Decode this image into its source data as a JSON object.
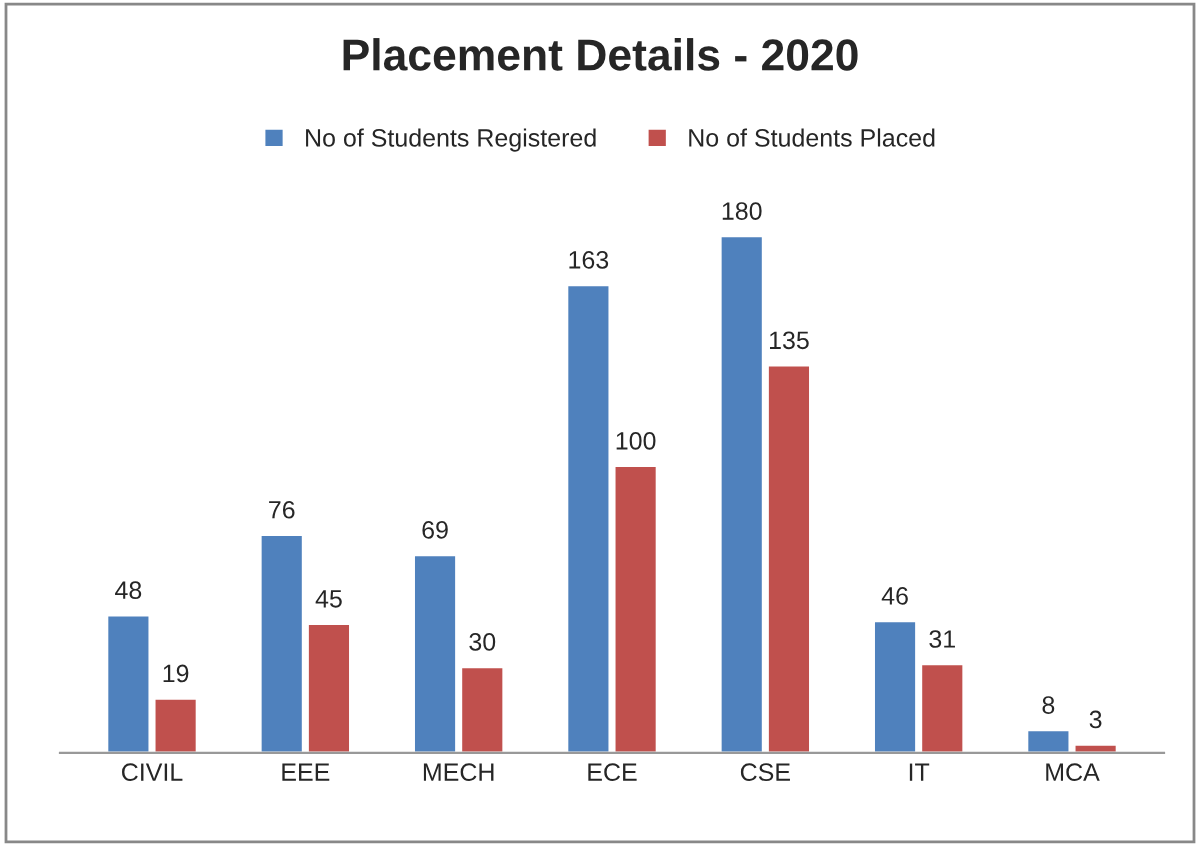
{
  "chart_data": {
    "type": "bar",
    "title": "Placement Details - 2020",
    "categories": [
      "CIVIL",
      "EEE",
      "MECH",
      "ECE",
      "CSE",
      "IT",
      "MCA"
    ],
    "series": [
      {
        "name": "No of Students Registered",
        "color": "#4f81bd",
        "values": [
          48,
          76,
          69,
          163,
          180,
          46,
          8
        ]
      },
      {
        "name": "No of Students Placed",
        "color": "#c0504d",
        "values": [
          19,
          45,
          30,
          100,
          135,
          31,
          3
        ]
      }
    ],
    "data_labels": true,
    "legend": "top",
    "grid": false
  }
}
